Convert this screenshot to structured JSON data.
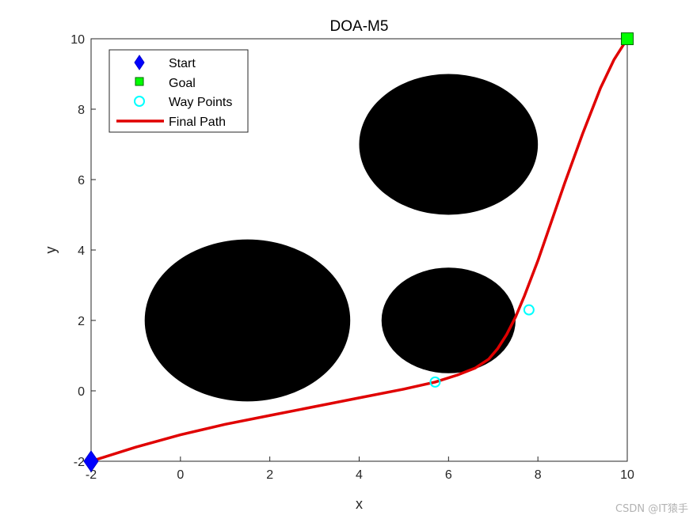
{
  "chart_data": {
    "type": "scatter",
    "title": "DOA-M5",
    "xlabel": "x",
    "ylabel": "y",
    "xlim": [
      -2,
      10
    ],
    "ylim": [
      -2,
      10
    ],
    "xticks": [
      -2,
      0,
      2,
      4,
      6,
      8,
      10
    ],
    "yticks": [
      -2,
      0,
      2,
      4,
      6,
      8,
      10
    ],
    "grid": false,
    "legend_position": "top-left",
    "obstacles": [
      {
        "cx": 6.0,
        "cy": 7.0,
        "r": 2.0
      },
      {
        "cx": 1.5,
        "cy": 2.0,
        "r": 2.3
      },
      {
        "cx": 6.0,
        "cy": 2.0,
        "r": 1.5
      }
    ],
    "start": {
      "name": "Start",
      "x": -2,
      "y": -2,
      "color": "#0000ff"
    },
    "goal": {
      "name": "Goal",
      "x": 10,
      "y": 10,
      "color": "#00ff00"
    },
    "waypoints": {
      "name": "Way Points",
      "color": "#00ffff",
      "points": [
        [
          5.7,
          0.25
        ],
        [
          7.8,
          2.3
        ]
      ]
    },
    "final_path": {
      "name": "Final Path",
      "color": "#e00000",
      "x": [
        -2.0,
        -1.0,
        0.0,
        1.0,
        2.0,
        3.0,
        4.0,
        5.0,
        5.7,
        6.2,
        6.6,
        6.9,
        7.1,
        7.3,
        7.5,
        7.7,
        8.0,
        8.3,
        8.6,
        9.0,
        9.4,
        9.7,
        10.0
      ],
      "y": [
        -2.0,
        -1.6,
        -1.25,
        -0.95,
        -0.7,
        -0.45,
        -0.2,
        0.05,
        0.25,
        0.45,
        0.65,
        0.9,
        1.2,
        1.6,
        2.1,
        2.7,
        3.7,
        4.8,
        5.9,
        7.3,
        8.6,
        9.4,
        10.0
      ]
    }
  },
  "watermark": "CSDN @IT猿手"
}
